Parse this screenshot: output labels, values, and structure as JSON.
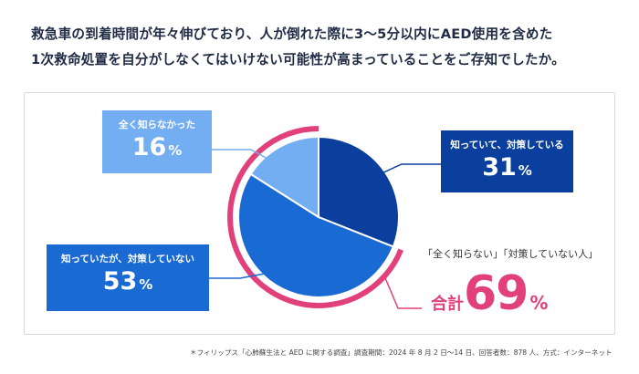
{
  "question": {
    "line1": "救急車の到着時間が年々伸びており、人が倒れた際に3～5分以内にAED使用を含めた",
    "line2": "1次救命処置を自分がしなくてはいけない可能性が高まっていることをご存知でしたか。"
  },
  "colors": {
    "know_act": "#0a3f9e",
    "know_no_act": "#1a6ad4",
    "unknown": "#74aef2",
    "highlight": "#e2407a"
  },
  "chart_data": {
    "type": "pie",
    "slices": [
      {
        "label": "知っていて、対策している",
        "value": 31
      },
      {
        "label": "知っていたが、対策していない",
        "value": 53
      },
      {
        "label": "全く知らなかった",
        "value": 16
      }
    ],
    "unit": "%",
    "highlight": {
      "caption": "「全く知らない」「対策していない人」",
      "prefix": "合計",
      "value": 69,
      "unit": "%"
    }
  },
  "footnote": "＊フィリップス「心肺蘇生法と AED に関する調査」調査期間：2024 年 8 月 2 日～14 日、回答者数：878 人、方式：インターネット"
}
